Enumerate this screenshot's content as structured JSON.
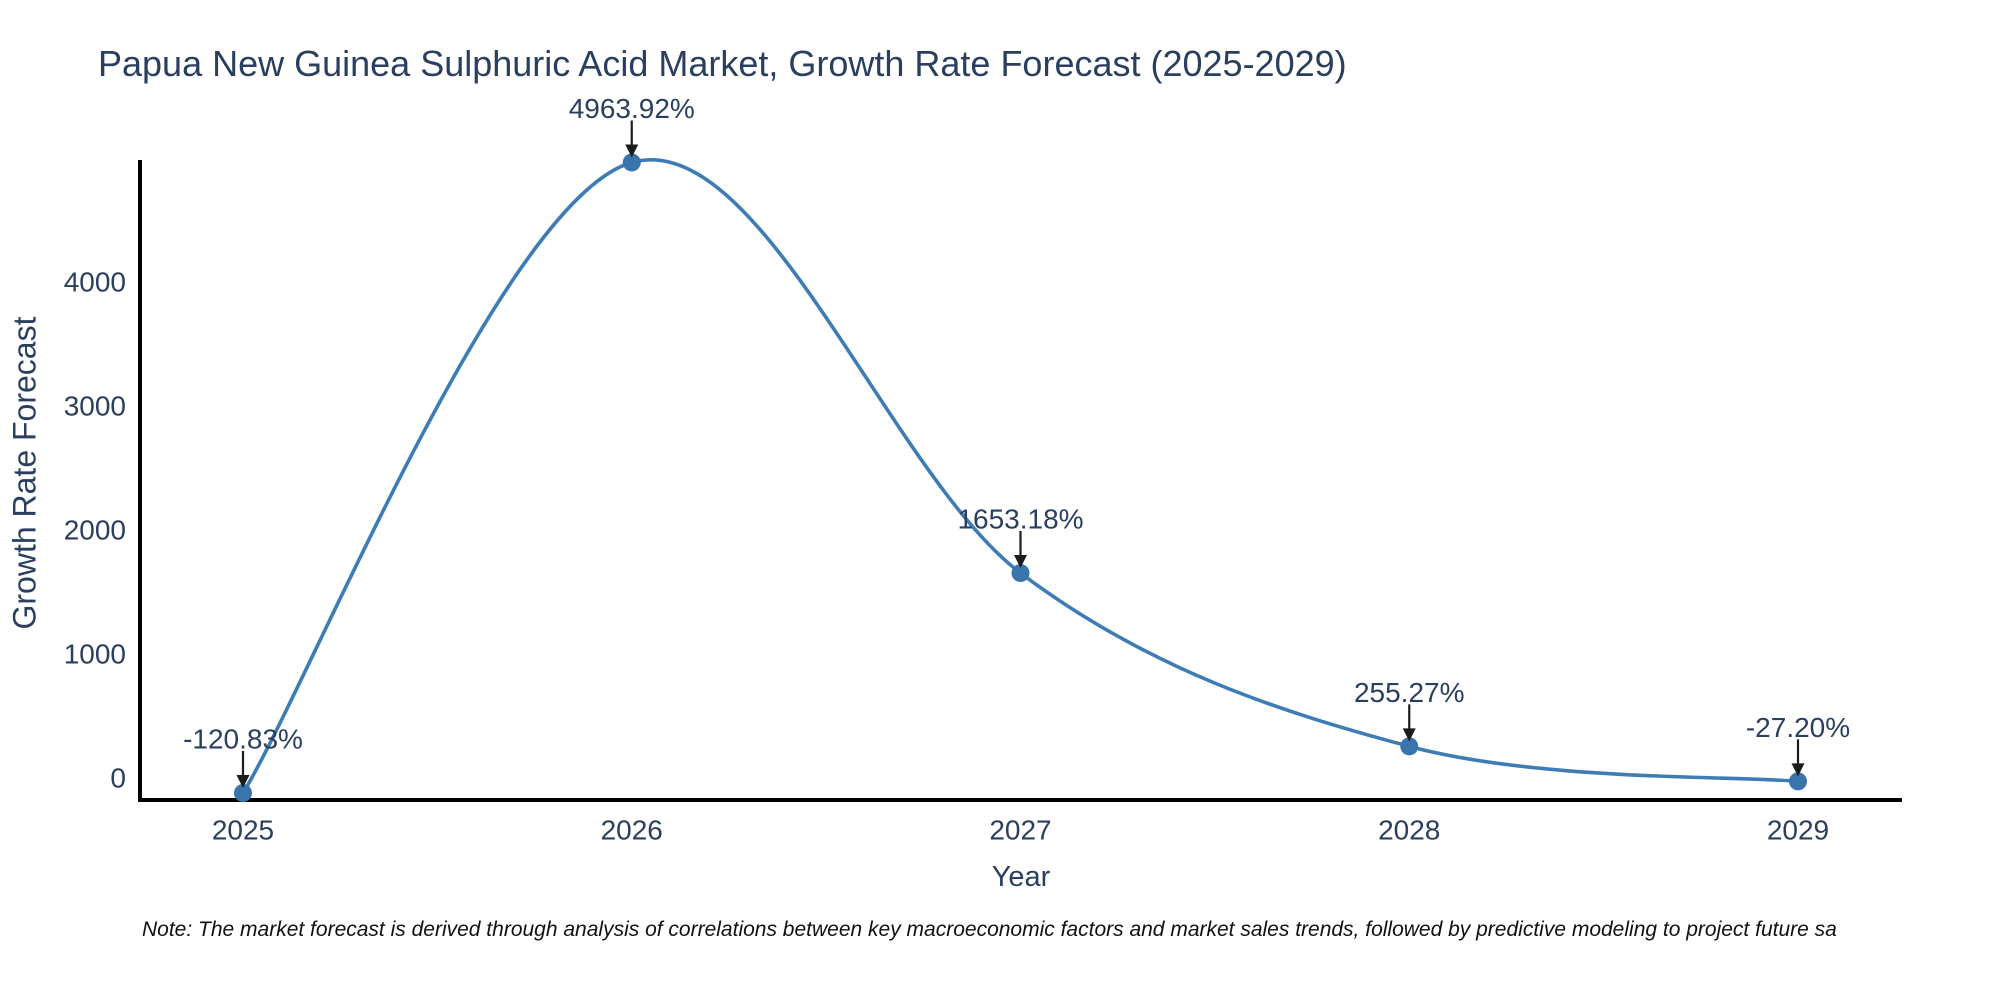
{
  "chart_data": {
    "type": "line",
    "title": "Papua New Guinea Sulphuric Acid Market, Growth Rate Forecast (2025-2029)",
    "xlabel": "Year",
    "ylabel": "Growth Rate Forecast",
    "x": [
      2025,
      2026,
      2027,
      2028,
      2029
    ],
    "series": [
      {
        "name": "Growth Rate Forecast",
        "values": [
          -120.83,
          4963.92,
          1653.18,
          255.27,
          -27.2
        ],
        "point_labels": [
          "-120.83%",
          "4963.92%",
          "1653.18%",
          "255.27%",
          "-27.20%"
        ]
      }
    ],
    "line_shape": "spline",
    "markers": true,
    "grid": false,
    "legend": "none",
    "x_ticks": [
      "2025",
      "2026",
      "2027",
      "2028",
      "2029"
    ],
    "y_ticks": [
      0,
      1000,
      2000,
      3000,
      4000
    ],
    "ylim": [
      -180,
      4990
    ],
    "colors": {
      "line": "#3d7cb5",
      "marker": "#3a74ad",
      "axis": "#000000",
      "text": "#2a3f5f",
      "arrow": "#1c1c1c",
      "background": "#ffffff"
    }
  },
  "note": "Note: The market forecast is derived through analysis of correlations between key macroeconomic factors and market sales trends, followed by predictive modeling to project future sa"
}
